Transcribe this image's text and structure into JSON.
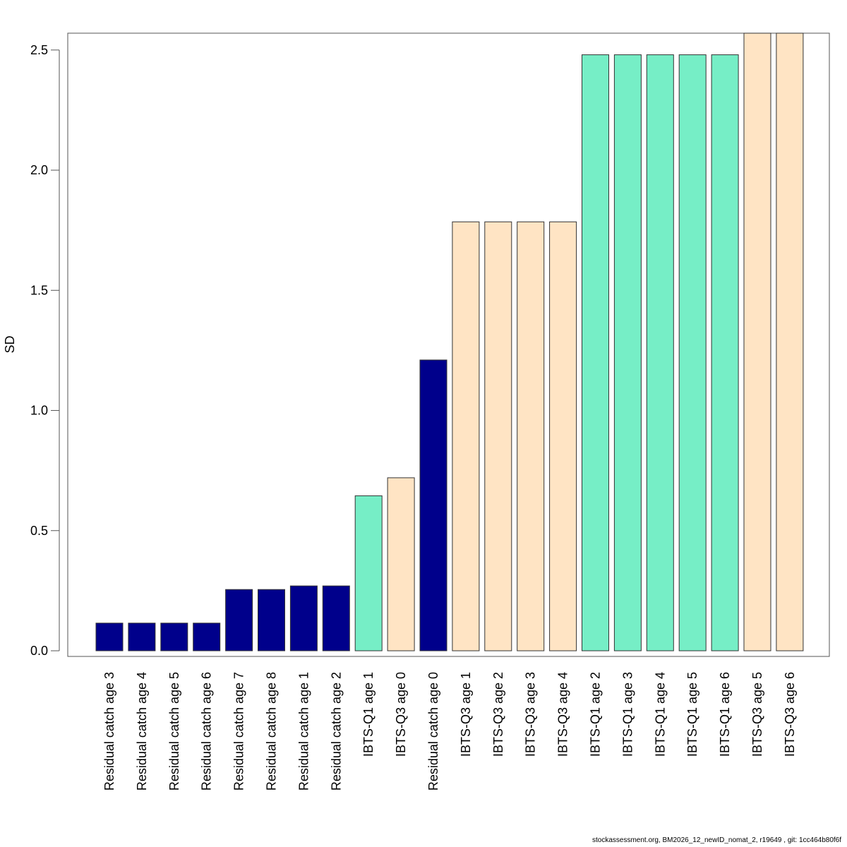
{
  "chart_data": {
    "type": "bar",
    "title": "",
    "xlabel": "",
    "ylabel": "SD",
    "ylim": [
      0,
      2.57
    ],
    "yticks": [
      0.0,
      0.5,
      1.0,
      1.5,
      2.0,
      2.5
    ],
    "ytick_labels": [
      "0.0",
      "0.5",
      "1.0",
      "1.5",
      "2.0",
      "2.5"
    ],
    "grid": false,
    "colors": {
      "Residual catch": "#00008b",
      "IBTS-Q1": "#76eec6",
      "IBTS-Q3": "#ffe4c4"
    },
    "bars": [
      {
        "label": "Residual catch age 3",
        "group": "Residual catch",
        "value": 0.115
      },
      {
        "label": "Residual catch age 4",
        "group": "Residual catch",
        "value": 0.115
      },
      {
        "label": "Residual catch age 5",
        "group": "Residual catch",
        "value": 0.115
      },
      {
        "label": "Residual catch age 6",
        "group": "Residual catch",
        "value": 0.115
      },
      {
        "label": "Residual catch age 7",
        "group": "Residual catch",
        "value": 0.255
      },
      {
        "label": "Residual catch age 8",
        "group": "Residual catch",
        "value": 0.255
      },
      {
        "label": "Residual catch age 1",
        "group": "Residual catch",
        "value": 0.27
      },
      {
        "label": "Residual catch age 2",
        "group": "Residual catch",
        "value": 0.27
      },
      {
        "label": "IBTS-Q1 age 1",
        "group": "IBTS-Q1",
        "value": 0.645
      },
      {
        "label": "IBTS-Q3 age 0",
        "group": "IBTS-Q3",
        "value": 0.72
      },
      {
        "label": "Residual catch age 0",
        "group": "Residual catch",
        "value": 1.21
      },
      {
        "label": "IBTS-Q3 age 1",
        "group": "IBTS-Q3",
        "value": 1.785
      },
      {
        "label": "IBTS-Q3 age 2",
        "group": "IBTS-Q3",
        "value": 1.785
      },
      {
        "label": "IBTS-Q3 age 3",
        "group": "IBTS-Q3",
        "value": 1.785
      },
      {
        "label": "IBTS-Q3 age 4",
        "group": "IBTS-Q3",
        "value": 1.785
      },
      {
        "label": "IBTS-Q1 age 2",
        "group": "IBTS-Q1",
        "value": 2.48
      },
      {
        "label": "IBTS-Q1 age 3",
        "group": "IBTS-Q1",
        "value": 2.48
      },
      {
        "label": "IBTS-Q1 age 4",
        "group": "IBTS-Q1",
        "value": 2.48
      },
      {
        "label": "IBTS-Q1 age 5",
        "group": "IBTS-Q1",
        "value": 2.48
      },
      {
        "label": "IBTS-Q1 age 6",
        "group": "IBTS-Q1",
        "value": 2.48
      },
      {
        "label": "IBTS-Q3 age 5",
        "group": "IBTS-Q3",
        "value": 2.57
      },
      {
        "label": "IBTS-Q3 age 6",
        "group": "IBTS-Q3",
        "value": 2.57
      }
    ]
  },
  "footer": "stockassessment.org, BM2026_12_newID_nomat_2, r19649 , git: 1cc464b80f6f"
}
